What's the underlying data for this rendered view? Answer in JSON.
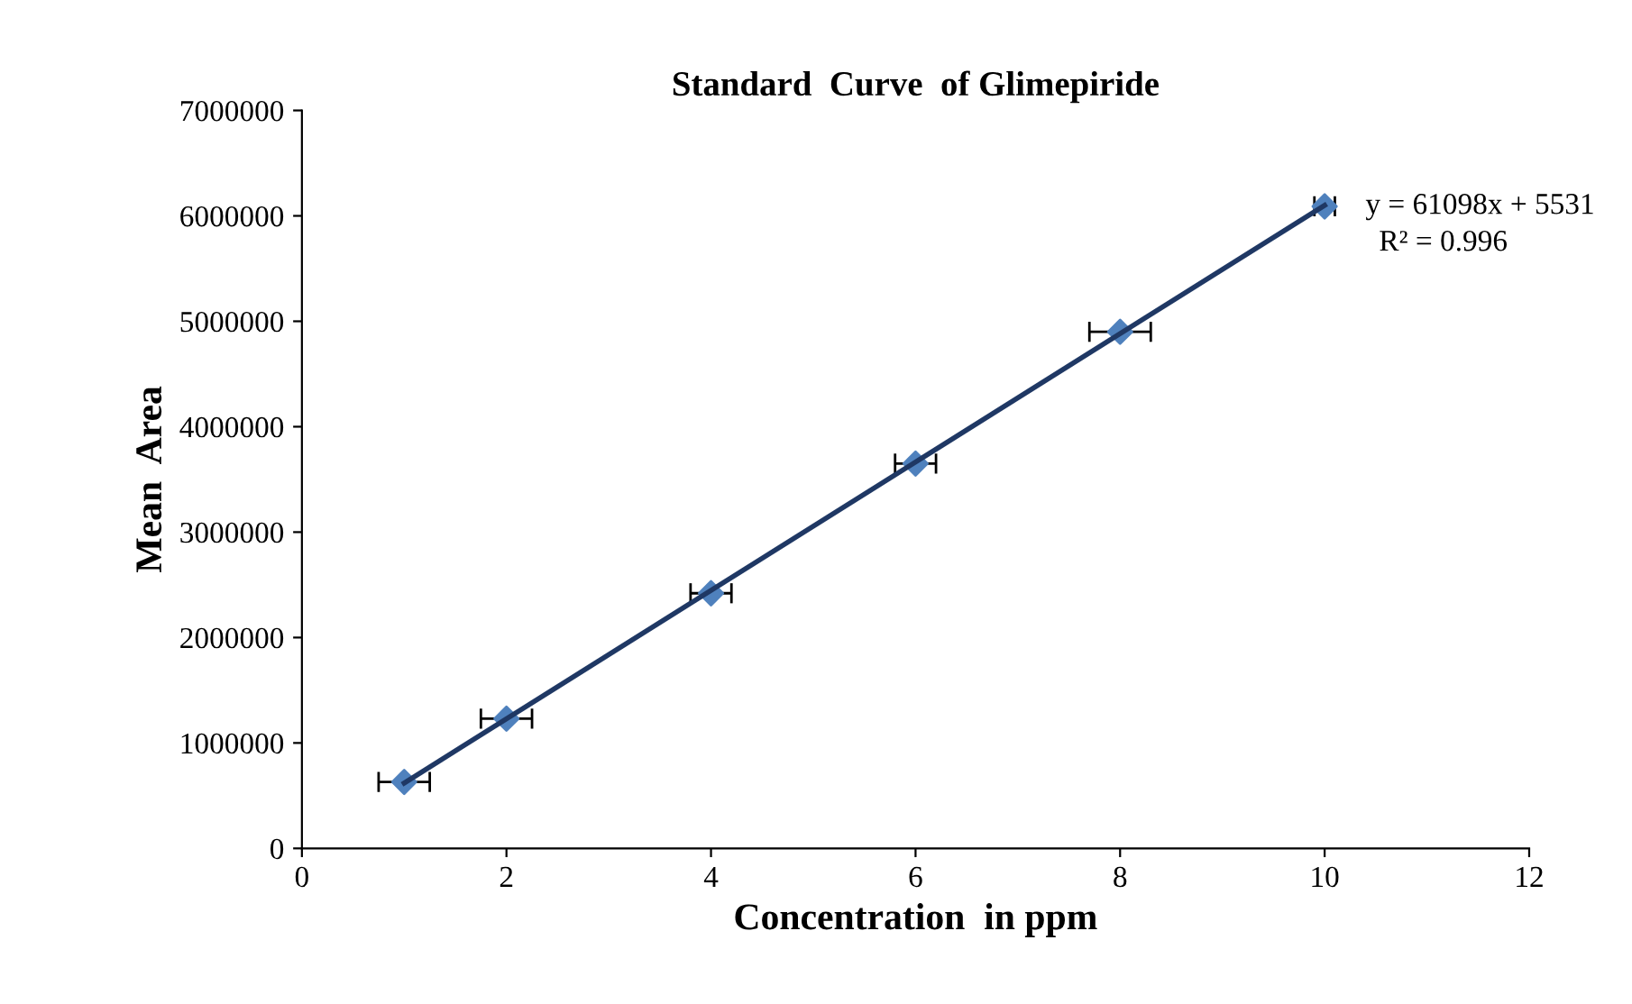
{
  "chart_data": {
    "type": "scatter",
    "title": "Standard  Curve  of Glimepiride",
    "xlabel": "Concentration  in ppm",
    "ylabel": "Mean  Area",
    "xlim": [
      0,
      12
    ],
    "xticks": [
      0,
      2,
      4,
      6,
      8,
      10,
      12
    ],
    "ylim": [
      0,
      7000000
    ],
    "yticks": [
      0,
      1000000,
      2000000,
      3000000,
      4000000,
      5000000,
      6000000,
      7000000
    ],
    "grid": false,
    "legend": false,
    "series": [
      {
        "marker": "diamond",
        "color": "#4f81bd",
        "x": [
          1,
          2,
          4,
          6,
          8,
          10
        ],
        "values": [
          630000,
          1230000,
          2420000,
          3650000,
          4900000,
          6090000
        ],
        "xerrors": [
          0.25,
          0.25,
          0.2,
          0.2,
          0.3,
          0.1
        ]
      },
      {
        "type": "line",
        "marker": "none",
        "color": "#1f3864",
        "x": [
          1,
          10
        ],
        "values": [
          620000,
          6100000
        ]
      }
    ],
    "annotations": [
      "y = 61098x + 5531",
      "R² = 0.996"
    ]
  }
}
